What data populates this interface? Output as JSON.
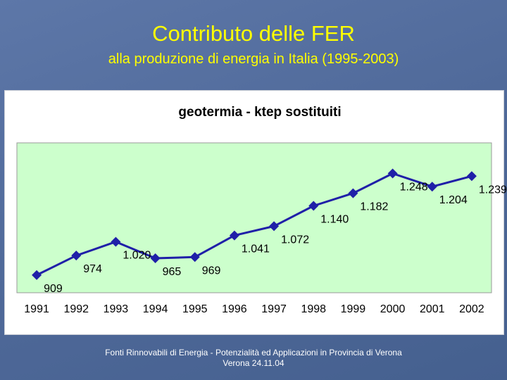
{
  "slide": {
    "title": "Contributo delle FER",
    "subtitle": "alla produzione di energia in Italia (1995-2003)"
  },
  "footer": {
    "line1": "Fonti Rinnovabili di Energia - Potenzialità ed Applicazioni in Provincia di Verona",
    "line2": "Verona 24.11.04"
  },
  "chart_data": {
    "type": "line",
    "title": "geotermia - ktep sostituiti",
    "xlabel": "",
    "ylabel": "",
    "categories": [
      "1991",
      "1992",
      "1993",
      "1994",
      "1995",
      "1996",
      "1997",
      "1998",
      "1999",
      "2000",
      "2001",
      "2002"
    ],
    "series": [
      {
        "values": [
          909,
          974,
          1020,
          965,
          969,
          1041,
          1072,
          1140,
          1182,
          1248,
          1204,
          1239
        ],
        "labels": [
          "909",
          "974",
          "1.020",
          "965",
          "969",
          "1.041",
          "1.072",
          "1.140",
          "1.182",
          "1.248",
          "1.204",
          "1.239"
        ],
        "color": "#1f1fa8"
      }
    ],
    "ylim": [
      850,
      1350
    ],
    "grid": false,
    "legend": "none",
    "plot_background": "#ccffcc"
  }
}
